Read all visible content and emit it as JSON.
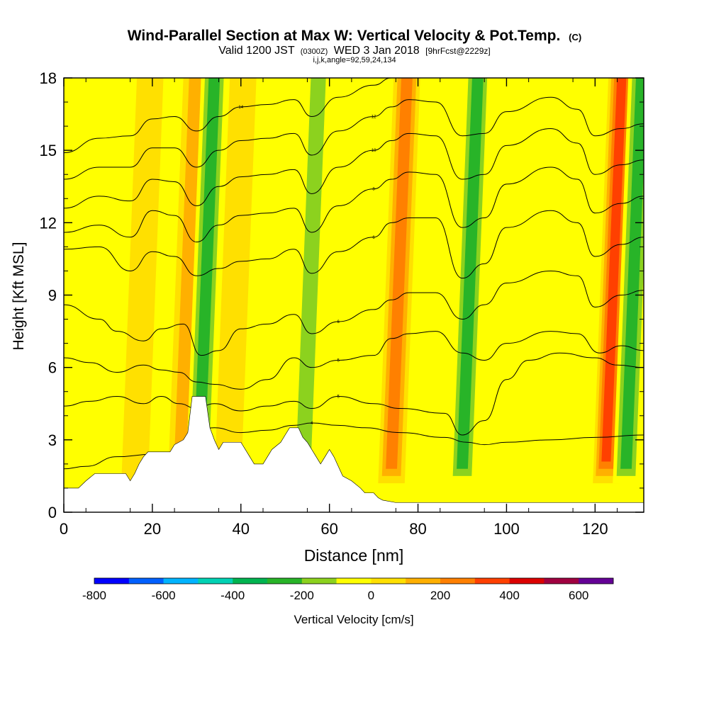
{
  "header": {
    "title": "Wind-Parallel Section at Max W: Vertical Velocity & Pot.Temp.",
    "title_suffix": "(C)",
    "valid_prefix": "Valid 1200 JST",
    "valid_utc": "(0300Z)",
    "valid_date": "WED 3 Jan 2018",
    "valid_fcst": "[9hrFcst@2229z]",
    "indices": "i,j,k,angle=92,59,24,134"
  },
  "chart_data": {
    "type": "heatmap",
    "xlabel": "Distance [nm]",
    "ylabel": "Height [Kft MSL]",
    "xlim": [
      0,
      131
    ],
    "ylim": [
      0,
      18
    ],
    "x_ticks": [
      0,
      20,
      40,
      60,
      80,
      100,
      120
    ],
    "y_ticks": [
      0,
      3,
      6,
      9,
      12,
      15,
      18
    ],
    "colorbar": {
      "label": "Vertical Velocity [cm/s]",
      "min": -800,
      "max": 700,
      "step": 100,
      "tick_values": [
        -800,
        -600,
        -400,
        -200,
        0,
        200,
        400,
        600
      ],
      "colors": [
        "#0000ff",
        "#0060ff",
        "#00b4ff",
        "#00d2b4",
        "#00b450",
        "#28b428",
        "#8cd21e",
        "#ffff00",
        "#ffe000",
        "#ffb000",
        "#ff8000",
        "#ff4000",
        "#dc0000",
        "#a00040",
        "#640096"
      ]
    },
    "updrafts": [
      {
        "x": 17,
        "w": 30
      },
      {
        "x": 27.5,
        "w": 160
      },
      {
        "x": 38,
        "w": 120
      },
      {
        "x": 75,
        "w": 330
      },
      {
        "x": 123.5,
        "w": 380
      }
    ],
    "downdrafts": [
      {
        "x": 31.5,
        "w": -260
      },
      {
        "x": 55,
        "w": -240
      },
      {
        "x": 63,
        "w": -130
      },
      {
        "x": 91,
        "w": -250
      },
      {
        "x": 128,
        "w": -250
      }
    ],
    "terrain": [
      [
        0,
        1
      ],
      [
        3.3,
        1
      ],
      [
        5,
        1.3
      ],
      [
        7,
        1.6
      ],
      [
        14,
        1.6
      ],
      [
        15,
        1.3
      ],
      [
        16,
        1.6
      ],
      [
        17,
        2
      ],
      [
        18,
        2.3
      ],
      [
        19,
        2.5
      ],
      [
        24,
        2.5
      ],
      [
        25,
        2.8
      ],
      [
        27,
        3
      ],
      [
        28,
        3.3
      ],
      [
        29,
        4.8
      ],
      [
        32,
        4.8
      ],
      [
        33,
        3.5
      ],
      [
        34,
        3
      ],
      [
        35,
        2.6
      ],
      [
        36,
        2.9
      ],
      [
        40,
        2.9
      ],
      [
        41,
        2.6
      ],
      [
        42,
        2.3
      ],
      [
        43,
        2
      ],
      [
        45,
        2
      ],
      [
        46,
        2.3
      ],
      [
        47,
        2.6
      ],
      [
        49,
        2.9
      ],
      [
        50,
        3.2
      ],
      [
        51,
        3.5
      ],
      [
        53,
        3.5
      ],
      [
        54,
        3.1
      ],
      [
        55,
        2.9
      ],
      [
        57,
        2.3
      ],
      [
        58,
        2
      ],
      [
        59,
        2.3
      ],
      [
        60,
        2.6
      ],
      [
        61,
        2.3
      ],
      [
        62,
        1.9
      ],
      [
        63,
        1.5
      ],
      [
        65,
        1.3
      ],
      [
        67,
        1
      ],
      [
        68,
        0.8
      ],
      [
        70,
        0.8
      ],
      [
        71,
        0.6
      ],
      [
        72,
        0.5
      ],
      [
        75,
        0.4
      ],
      [
        131,
        0.4
      ]
    ],
    "contours": [
      {
        "label": "4",
        "points": [
          [
            0,
            1.8
          ],
          [
            5,
            1.9
          ],
          [
            12,
            2.3
          ],
          [
            20,
            2.4
          ],
          [
            25,
            2.5
          ],
          [
            29,
            3.3
          ],
          [
            34,
            3.5
          ],
          [
            40,
            3.3
          ],
          [
            46,
            3.4
          ],
          [
            52,
            3.6
          ],
          [
            56,
            3.7
          ],
          [
            62,
            3.6
          ],
          [
            68,
            3.5
          ],
          [
            76,
            3.3
          ],
          [
            86,
            3.1
          ],
          [
            91,
            2.9
          ],
          [
            95,
            2.8
          ],
          [
            100,
            2.9
          ],
          [
            110,
            3
          ],
          [
            120,
            3.1
          ],
          [
            131,
            3.2
          ]
        ]
      },
      {
        "label": "5",
        "points": [
          [
            0,
            4.4
          ],
          [
            6,
            4.6
          ],
          [
            12,
            4.8
          ],
          [
            18,
            4.5
          ],
          [
            22,
            4.8
          ],
          [
            26,
            4.5
          ],
          [
            30,
            4.3
          ],
          [
            34,
            4.5
          ],
          [
            40,
            4.2
          ],
          [
            46,
            4.4
          ],
          [
            52,
            4.6
          ],
          [
            56,
            4.3
          ],
          [
            62,
            4.8
          ],
          [
            70,
            4.5
          ],
          [
            76,
            4.3
          ],
          [
            86,
            4.1
          ],
          [
            90,
            3.2
          ],
          [
            95,
            3.8
          ],
          [
            100,
            5.5
          ],
          [
            105,
            6.3
          ],
          [
            112,
            6.6
          ],
          [
            120,
            6.4
          ],
          [
            125,
            6.1
          ],
          [
            131,
            6
          ]
        ]
      },
      {
        "label": "5",
        "points": [
          [
            0,
            6.4
          ],
          [
            6,
            6.2
          ],
          [
            12,
            5.8
          ],
          [
            18,
            6.1
          ],
          [
            22,
            5.9
          ],
          [
            26,
            5.8
          ],
          [
            30,
            5.4
          ],
          [
            34,
            5.3
          ],
          [
            40,
            5.1
          ],
          [
            46,
            5.5
          ],
          [
            52,
            6.4
          ],
          [
            56,
            6
          ],
          [
            62,
            6.3
          ],
          [
            70,
            6.5
          ],
          [
            74,
            7.2
          ],
          [
            78,
            7.4
          ],
          [
            84,
            7.5
          ],
          [
            90,
            6.6
          ],
          [
            95,
            6.3
          ],
          [
            100,
            7
          ],
          [
            110,
            7.5
          ],
          [
            116,
            7.4
          ],
          [
            121,
            6.6
          ],
          [
            126,
            6.9
          ],
          [
            131,
            6.7
          ]
        ]
      },
      {
        "label": "6",
        "points": [
          [
            0,
            8.6
          ],
          [
            8,
            8
          ],
          [
            12,
            7.5
          ],
          [
            18,
            7.1
          ],
          [
            22,
            7.6
          ],
          [
            27,
            7.8
          ],
          [
            31,
            6.5
          ],
          [
            35,
            6.7
          ],
          [
            40,
            7.6
          ],
          [
            46,
            7.8
          ],
          [
            52,
            8.2
          ],
          [
            56,
            7.4
          ],
          [
            62,
            7.9
          ],
          [
            70,
            8.4
          ],
          [
            74,
            8.8
          ],
          [
            78,
            9.1
          ],
          [
            84,
            9.1
          ],
          [
            90,
            8
          ],
          [
            95,
            8.6
          ],
          [
            100,
            9.5
          ],
          [
            110,
            10
          ],
          [
            116,
            9.8
          ],
          [
            120,
            8.5
          ],
          [
            126,
            9
          ],
          [
            131,
            9.2
          ]
        ]
      },
      {
        "label": "6",
        "points": [
          [
            0,
            10.9
          ],
          [
            8,
            11
          ],
          [
            15,
            10
          ],
          [
            20,
            10.8
          ],
          [
            25,
            10.6
          ],
          [
            30,
            9.8
          ],
          [
            35,
            10.1
          ],
          [
            40,
            10.4
          ],
          [
            46,
            10.5
          ],
          [
            52,
            10.9
          ],
          [
            56,
            9.9
          ],
          [
            62,
            10.8
          ],
          [
            70,
            11.4
          ],
          [
            74,
            12
          ],
          [
            78,
            12.2
          ],
          [
            84,
            12.2
          ],
          [
            90,
            9.7
          ],
          [
            95,
            10.3
          ],
          [
            100,
            11.8
          ],
          [
            110,
            12.5
          ],
          [
            116,
            12
          ],
          [
            120,
            10.6
          ],
          [
            126,
            11.1
          ],
          [
            131,
            11.4
          ]
        ]
      },
      {
        "label": "8",
        "points": [
          [
            0,
            11.6
          ],
          [
            8,
            11.9
          ],
          [
            15,
            11.4
          ],
          [
            20,
            12.5
          ],
          [
            25,
            12.3
          ],
          [
            30,
            11.2
          ],
          [
            35,
            11.9
          ],
          [
            40,
            12.3
          ],
          [
            46,
            12.4
          ],
          [
            52,
            12.6
          ],
          [
            56,
            11.6
          ],
          [
            62,
            12.7
          ],
          [
            70,
            13.4
          ],
          [
            74,
            13.8
          ],
          [
            78,
            14.1
          ],
          [
            84,
            14
          ],
          [
            90,
            11.8
          ],
          [
            95,
            12.2
          ],
          [
            100,
            13.6
          ],
          [
            110,
            14.3
          ],
          [
            116,
            13.8
          ],
          [
            120,
            12.4
          ],
          [
            126,
            12.8
          ],
          [
            131,
            13.1
          ]
        ]
      },
      {
        "label": "10",
        "points": [
          [
            0,
            12.6
          ],
          [
            8,
            13.1
          ],
          [
            15,
            12.9
          ],
          [
            20,
            13.8
          ],
          [
            25,
            13.7
          ],
          [
            30,
            12.7
          ],
          [
            35,
            13.5
          ],
          [
            40,
            13.9
          ],
          [
            46,
            14
          ],
          [
            52,
            14.2
          ],
          [
            56,
            13.2
          ],
          [
            62,
            14.3
          ],
          [
            70,
            15
          ],
          [
            74,
            15.4
          ],
          [
            78,
            15.7
          ],
          [
            84,
            15.6
          ],
          [
            90,
            13.8
          ],
          [
            95,
            14
          ],
          [
            100,
            15.2
          ],
          [
            110,
            15.9
          ],
          [
            116,
            15.3
          ],
          [
            120,
            14
          ],
          [
            126,
            14.4
          ],
          [
            131,
            14.6
          ]
        ]
      },
      {
        "label": "12",
        "points": [
          [
            0,
            13.8
          ],
          [
            8,
            14.3
          ],
          [
            15,
            14.3
          ],
          [
            20,
            15.1
          ],
          [
            25,
            15.1
          ],
          [
            30,
            14.3
          ],
          [
            35,
            15
          ],
          [
            40,
            15.4
          ],
          [
            46,
            15.5
          ],
          [
            52,
            15.7
          ],
          [
            56,
            14.8
          ],
          [
            62,
            15.8
          ],
          [
            70,
            16.4
          ],
          [
            74,
            16.8
          ],
          [
            78,
            17.1
          ],
          [
            84,
            17
          ],
          [
            90,
            15.6
          ],
          [
            95,
            15.7
          ],
          [
            100,
            16.6
          ],
          [
            110,
            17.2
          ],
          [
            116,
            16.7
          ],
          [
            120,
            15.6
          ],
          [
            126,
            15.9
          ],
          [
            131,
            16.1
          ]
        ]
      },
      {
        "label": "14",
        "points": [
          [
            0,
            14.9
          ],
          [
            8,
            15.5
          ],
          [
            15,
            15.6
          ],
          [
            20,
            16.3
          ],
          [
            25,
            16.4
          ],
          [
            30,
            15.8
          ],
          [
            35,
            16.4
          ],
          [
            40,
            16.8
          ],
          [
            46,
            16.9
          ],
          [
            52,
            17.1
          ],
          [
            56,
            16.4
          ],
          [
            62,
            17.2
          ],
          [
            70,
            17.7
          ],
          [
            74,
            18
          ]
        ]
      }
    ]
  }
}
